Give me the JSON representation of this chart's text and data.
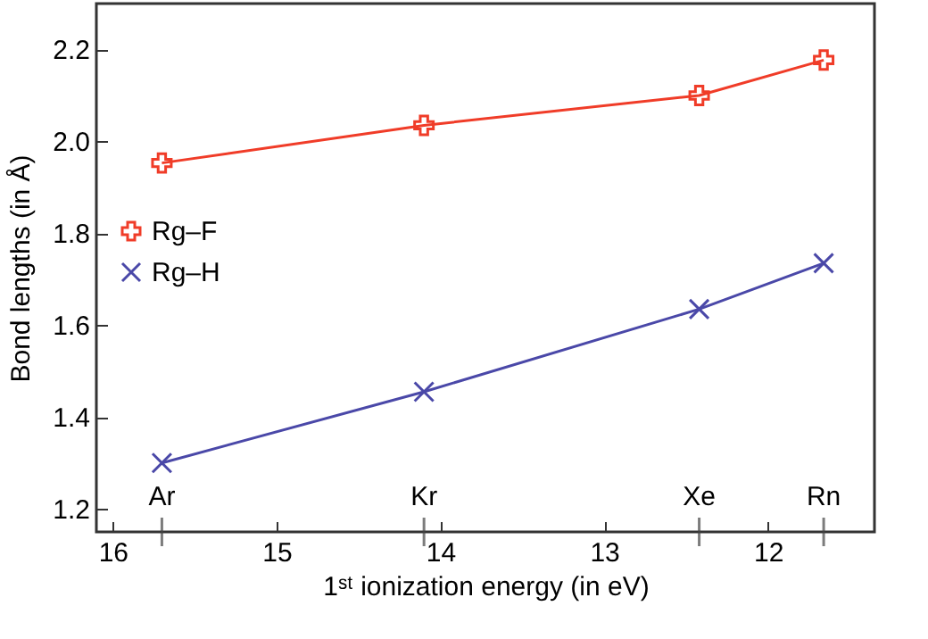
{
  "chart_data": {
    "type": "line",
    "xlabel": "1ˢᵗ ionization energy (in eV)",
    "ylabel": "Bond lengths (in Å)",
    "x": [
      15.7,
      14.1,
      12.42,
      11.66
    ],
    "series": [
      {
        "name": "Rg–F",
        "color": "#f03c28",
        "marker": "cross",
        "values": [
          1.953,
          2.035,
          2.1,
          2.177
        ]
      },
      {
        "name": "Rg–H",
        "color": "#4a48a8",
        "marker": "x",
        "values": [
          1.3,
          1.455,
          1.635,
          1.735
        ]
      }
    ],
    "xlim": [
      16.1,
      11.35
    ],
    "xticks": [
      16,
      15,
      14,
      13,
      12
    ],
    "ylim": [
      1.15,
      2.3
    ],
    "yticks": [
      1.2,
      1.4,
      1.6,
      1.8,
      {
        "value": 2,
        "label": "2.0"
      },
      2.2
    ],
    "ref_lines": [
      {
        "axis": "x",
        "value": 15.7,
        "label": "Ar"
      },
      {
        "axis": "x",
        "value": 14.1,
        "label": "Kr"
      },
      {
        "axis": "x",
        "value": 12.42,
        "label": "Xe"
      },
      {
        "axis": "x",
        "value": 11.66,
        "label": "Rn"
      }
    ],
    "legend": "left",
    "grid": false
  }
}
